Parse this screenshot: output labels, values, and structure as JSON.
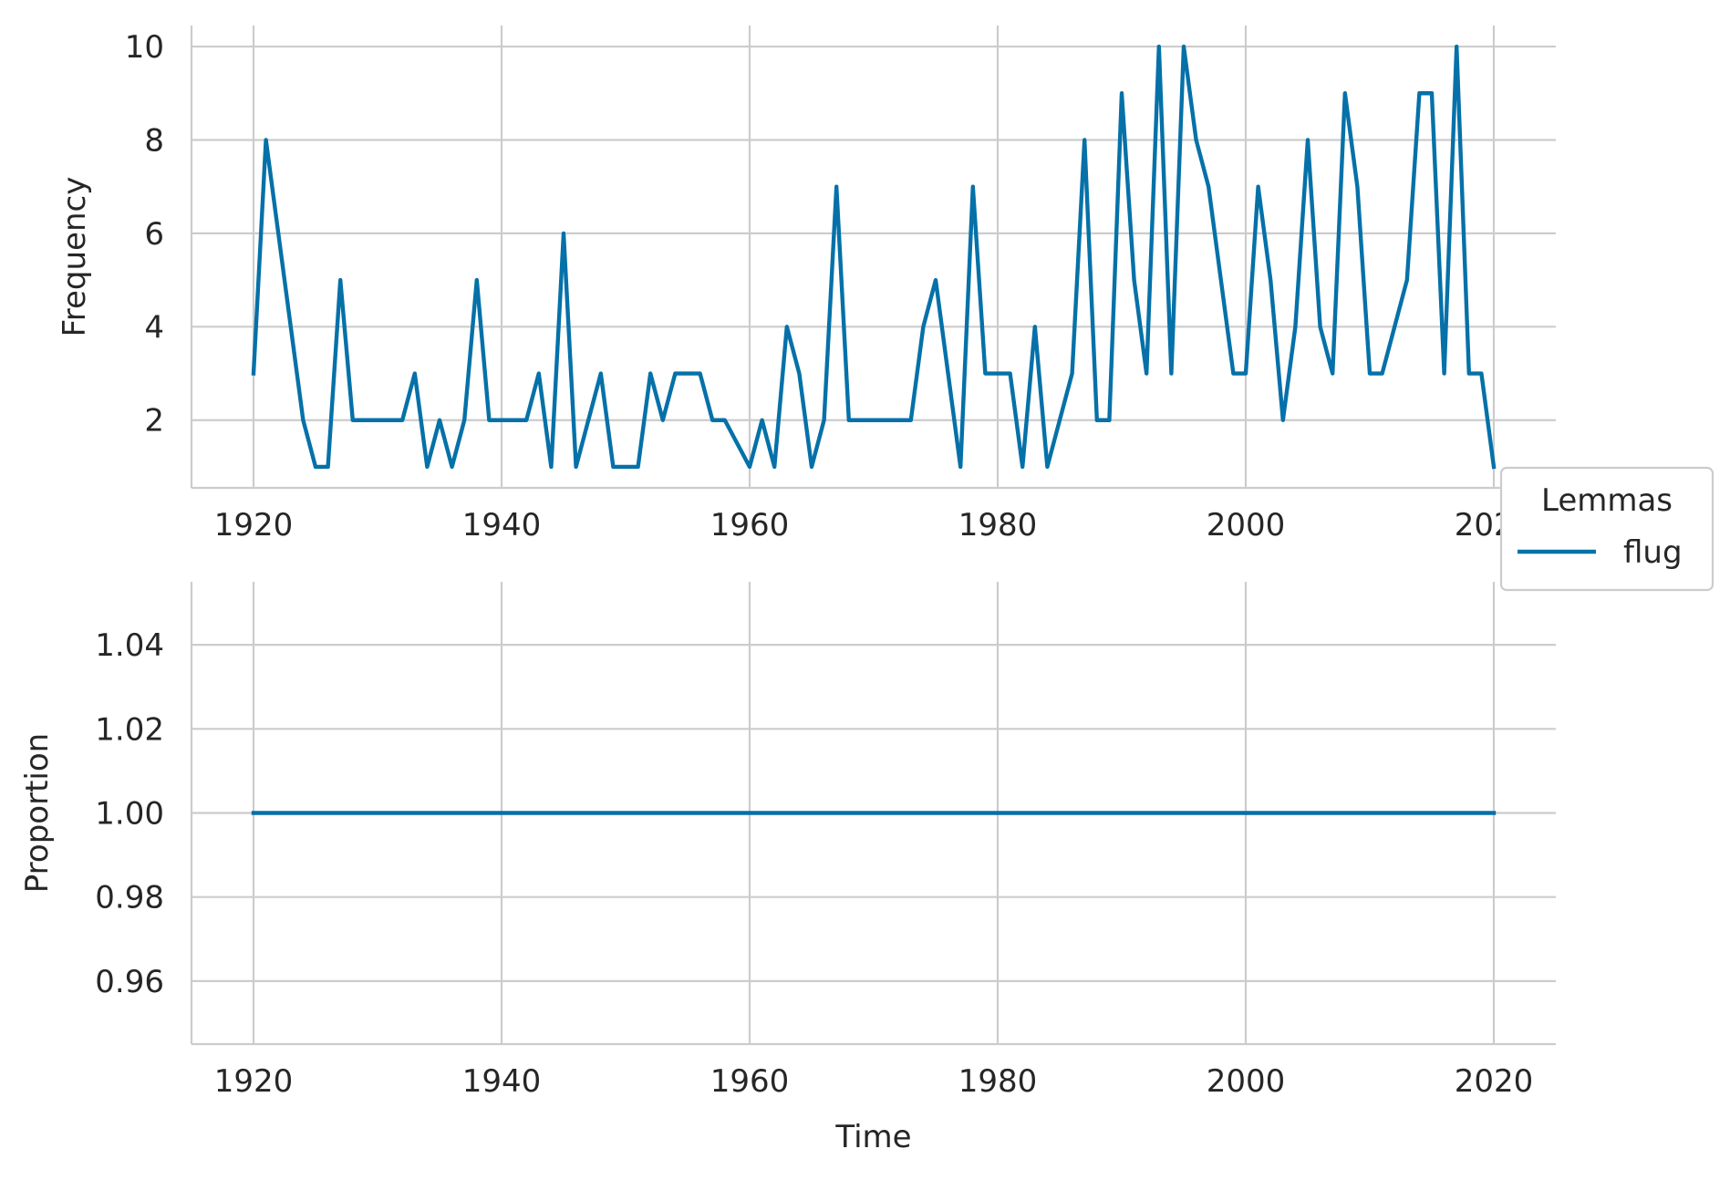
{
  "colors": {
    "series": "#0571a8",
    "grid": "#cccccc",
    "text": "#262626"
  },
  "legend": {
    "title": "Lemmas",
    "placement": "right",
    "entries": [
      "flug"
    ]
  },
  "chart_data": [
    {
      "type": "line",
      "ylabel": "Frequency",
      "xlabel": "",
      "xlim": [
        1915,
        2025
      ],
      "ylim": [
        0.55,
        10.45
      ],
      "xticks": [
        1920,
        1940,
        1960,
        1980,
        2000,
        2020
      ],
      "yticks": [
        2,
        4,
        6,
        8,
        10
      ],
      "xtick_labels": [
        "1920",
        "1940",
        "1960",
        "1980",
        "2000",
        "2020"
      ],
      "ytick_labels": [
        "2",
        "4",
        "6",
        "8",
        "10"
      ],
      "grid": true,
      "x": [
        1920,
        1921,
        1922,
        1923,
        1924,
        1925,
        1926,
        1927,
        1928,
        1929,
        1930,
        1931,
        1932,
        1933,
        1934,
        1935,
        1936,
        1937,
        1938,
        1939,
        1940,
        1941,
        1942,
        1943,
        1944,
        1945,
        1946,
        1947,
        1948,
        1949,
        1950,
        1951,
        1952,
        1953,
        1954,
        1955,
        1956,
        1957,
        1958,
        1959,
        1960,
        1961,
        1962,
        1963,
        1964,
        1965,
        1966,
        1967,
        1968,
        1969,
        1970,
        1971,
        1972,
        1973,
        1974,
        1975,
        1976,
        1977,
        1978,
        1979,
        1980,
        1981,
        1982,
        1983,
        1984,
        1985,
        1986,
        1987,
        1988,
        1989,
        1990,
        1991,
        1992,
        1993,
        1994,
        1995,
        1996,
        1997,
        1998,
        1999,
        2000,
        2001,
        2002,
        2003,
        2004,
        2005,
        2006,
        2007,
        2008,
        2009,
        2010,
        2011,
        2012,
        2013,
        2014,
        2015,
        2016,
        2017,
        2018,
        2019,
        2020
      ],
      "series": [
        {
          "name": "flug",
          "values": [
            3,
            8,
            6,
            4,
            2,
            1,
            1,
            5,
            2,
            2,
            2,
            2,
            2,
            3,
            1,
            2,
            1,
            2,
            5,
            2,
            2,
            2,
            2,
            3,
            1,
            6,
            1,
            2,
            3,
            1,
            1,
            1,
            3,
            2,
            3,
            3,
            3,
            2,
            2,
            1.5,
            1,
            2,
            1,
            4,
            3,
            1,
            2,
            7,
            2,
            2,
            2,
            2,
            2,
            2,
            4,
            5,
            3,
            1,
            7,
            3,
            3,
            3,
            1,
            4,
            1,
            2,
            3,
            8,
            2,
            2,
            9,
            5,
            3,
            10,
            3,
            10,
            8,
            7,
            5,
            3,
            3,
            7,
            5,
            2,
            4,
            8,
            4,
            3,
            9,
            7,
            3,
            3,
            4,
            5,
            9,
            9,
            3,
            10,
            3,
            3,
            1
          ]
        }
      ]
    },
    {
      "type": "line",
      "ylabel": "Proportion",
      "xlabel": "Time",
      "xlim": [
        1915,
        2025
      ],
      "ylim": [
        0.945,
        1.055
      ],
      "xticks": [
        1920,
        1940,
        1960,
        1980,
        2000,
        2020
      ],
      "yticks": [
        0.96,
        0.98,
        1.0,
        1.02,
        1.04
      ],
      "xtick_labels": [
        "1920",
        "1940",
        "1960",
        "1980",
        "2000",
        "2020"
      ],
      "ytick_labels": [
        "0.96",
        "0.98",
        "1.00",
        "1.02",
        "1.04"
      ],
      "grid": true,
      "x": [
        1920,
        2020
      ],
      "series": [
        {
          "name": "flug",
          "values": [
            1.0,
            1.0
          ]
        }
      ]
    }
  ]
}
